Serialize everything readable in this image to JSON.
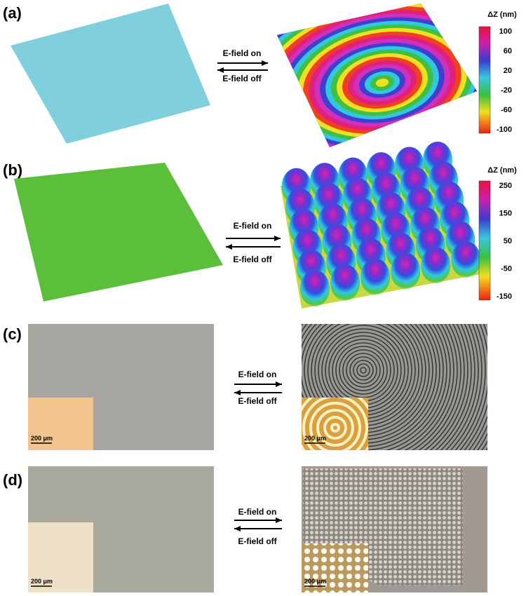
{
  "panels": [
    {
      "label": "(a)",
      "arrow_on": "E-field on",
      "arrow_off": "E-field off",
      "colorbar": {
        "title": "ΔZ (nm)",
        "ticks": [
          100,
          60,
          20,
          -20,
          -60,
          -100
        ]
      }
    },
    {
      "label": "(b)",
      "arrow_on": "E-field on",
      "arrow_off": "E-field off",
      "colorbar": {
        "title": "ΔZ (nm)",
        "ticks": [
          250,
          150,
          50,
          -50,
          -150
        ]
      }
    },
    {
      "label": "(c)",
      "arrow_on": "E-field on",
      "arrow_off": "E-field off",
      "scale_left": "200 μm",
      "scale_right": "200 μm"
    },
    {
      "label": "(d)",
      "arrow_on": "E-field on",
      "arrow_off": "E-field off",
      "scale_left": "200 μm",
      "scale_right": "200 μm"
    }
  ]
}
